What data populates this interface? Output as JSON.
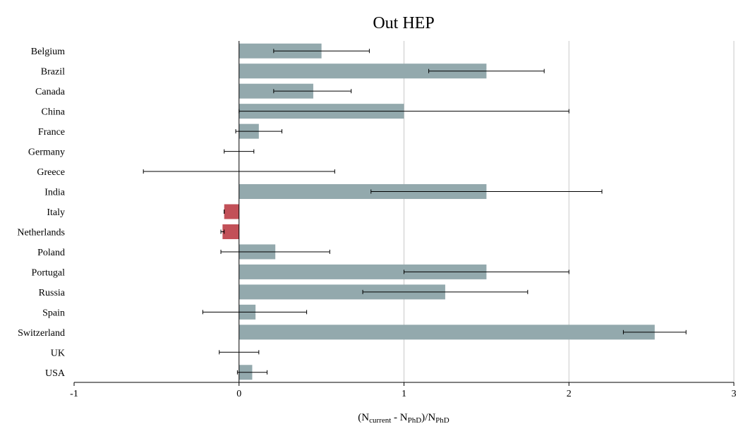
{
  "chart_data": {
    "type": "bar",
    "orientation": "horizontal",
    "title": "Out HEP",
    "xlabel_parts": {
      "open": "(N",
      "current_sub": "current",
      "minus": " - N",
      "phd_sub": "PhD",
      "close": ")/N",
      "phd_sub2": "PhD"
    },
    "xlim": [
      -1,
      3
    ],
    "xticks": [
      -1,
      0,
      1,
      2,
      3
    ],
    "grid": "vertical",
    "colors": {
      "positive": "#93a9ad",
      "negative": "#c25058",
      "error_bar": "#000000",
      "grid": "#c8c8c8"
    },
    "categories": [
      "Belgium",
      "Brazil",
      "Canada",
      "China",
      "France",
      "Germany",
      "Greece",
      "India",
      "Italy",
      "Netherlands",
      "Poland",
      "Portugal",
      "Russia",
      "Spain",
      "Switzerland",
      "UK",
      "USA"
    ],
    "values": [
      0.5,
      1.5,
      0.45,
      1.0,
      0.12,
      0.0,
      0.0,
      1.5,
      -0.09,
      -0.1,
      0.22,
      1.5,
      1.25,
      0.1,
      2.52,
      0.0,
      0.08
    ],
    "error_low": [
      0.21,
      1.15,
      0.21,
      0.0,
      -0.02,
      -0.09,
      -0.58,
      0.8,
      -0.09,
      -0.11,
      -0.11,
      1.0,
      0.75,
      -0.22,
      2.33,
      -0.12,
      -0.01
    ],
    "error_high": [
      0.79,
      1.85,
      0.68,
      2.0,
      0.26,
      0.09,
      0.58,
      2.2,
      -0.09,
      -0.09,
      0.55,
      2.0,
      1.75,
      0.41,
      2.71,
      0.12,
      0.17
    ]
  }
}
